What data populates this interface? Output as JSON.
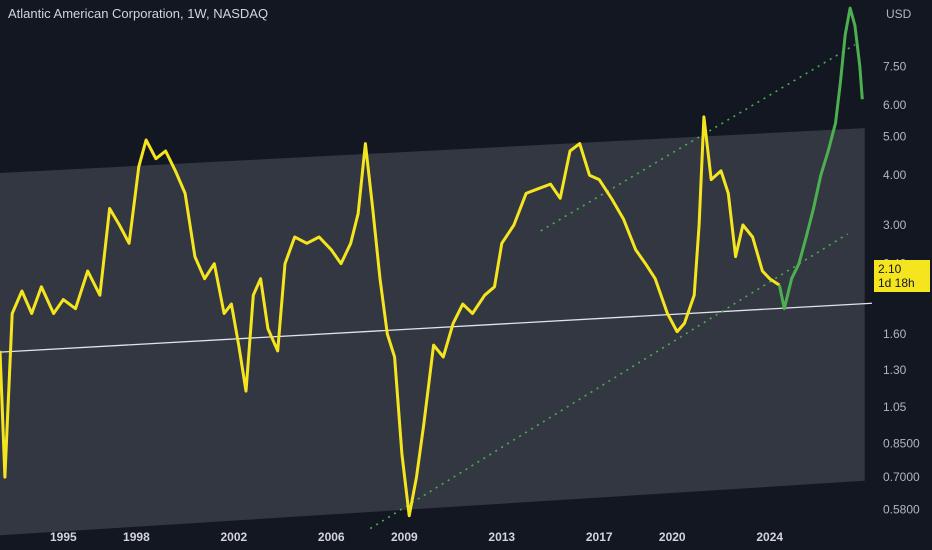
{
  "chart_data": {
    "type": "line",
    "title": "Atlantic American Corporation, 1W, NASDAQ",
    "currency": "USD",
    "yscale": "log",
    "ylim": [
      0.54,
      11.0
    ],
    "xlim": [
      1992.4,
      2028.2
    ],
    "y_ticks": [
      "7.50",
      "6.00",
      "5.00",
      "4.00",
      "3.00",
      "2.40",
      "1.60",
      "1.30",
      "1.05",
      "0.8500",
      "0.7000",
      "0.5800"
    ],
    "x_ticks": [
      "1995",
      "1998",
      "2002",
      "2006",
      "2009",
      "2013",
      "2017",
      "2020",
      "2024"
    ],
    "last_price": "2.10",
    "countdown": "1d 18h",
    "colors": {
      "background": "#131722",
      "price": "#f5e51f",
      "projection": "#4caf50",
      "channel": "#3a3d47",
      "midline": "#e0e3eb",
      "trendline": "#4caf50"
    },
    "series": [
      {
        "points": [
          [
            1992.4,
            1.45
          ],
          [
            1992.6,
            0.7
          ],
          [
            1992.9,
            1.8
          ],
          [
            1993.3,
            2.05
          ],
          [
            1993.7,
            1.8
          ],
          [
            1994.1,
            2.1
          ],
          [
            1994.6,
            1.8
          ],
          [
            1995.0,
            1.95
          ],
          [
            1995.5,
            1.85
          ],
          [
            1996.0,
            2.3
          ],
          [
            1996.5,
            2.0
          ],
          [
            1996.9,
            3.3
          ],
          [
            1997.3,
            3.0
          ],
          [
            1997.7,
            2.7
          ],
          [
            1998.1,
            4.2
          ],
          [
            1998.4,
            4.9
          ],
          [
            1998.8,
            4.4
          ],
          [
            1999.2,
            4.6
          ],
          [
            1999.6,
            4.1
          ],
          [
            2000.0,
            3.6
          ],
          [
            2000.4,
            2.5
          ],
          [
            2000.8,
            2.2
          ],
          [
            2001.2,
            2.4
          ],
          [
            2001.6,
            1.8
          ],
          [
            2001.9,
            1.9
          ],
          [
            2002.2,
            1.5
          ],
          [
            2002.5,
            1.15
          ],
          [
            2002.8,
            2.0
          ],
          [
            2003.1,
            2.2
          ],
          [
            2003.4,
            1.65
          ],
          [
            2003.8,
            1.45
          ],
          [
            2004.1,
            2.4
          ],
          [
            2004.5,
            2.8
          ],
          [
            2005.0,
            2.7
          ],
          [
            2005.5,
            2.8
          ],
          [
            2006.0,
            2.6
          ],
          [
            2006.4,
            2.4
          ],
          [
            2006.8,
            2.7
          ],
          [
            2007.1,
            3.2
          ],
          [
            2007.4,
            4.8
          ],
          [
            2007.7,
            3.3
          ],
          [
            2008.0,
            2.2
          ],
          [
            2008.3,
            1.6
          ],
          [
            2008.6,
            1.4
          ],
          [
            2008.9,
            0.8
          ],
          [
            2009.2,
            0.56
          ],
          [
            2009.5,
            0.7
          ],
          [
            2009.8,
            0.95
          ],
          [
            2010.2,
            1.5
          ],
          [
            2010.6,
            1.4
          ],
          [
            2011.0,
            1.7
          ],
          [
            2011.4,
            1.9
          ],
          [
            2011.8,
            1.8
          ],
          [
            2012.3,
            2.0
          ],
          [
            2012.7,
            2.1
          ],
          [
            2013.0,
            2.7
          ],
          [
            2013.5,
            3.0
          ],
          [
            2014.0,
            3.6
          ],
          [
            2014.5,
            3.7
          ],
          [
            2015.0,
            3.8
          ],
          [
            2015.4,
            3.5
          ],
          [
            2015.8,
            4.6
          ],
          [
            2016.2,
            4.8
          ],
          [
            2016.6,
            4.0
          ],
          [
            2017.0,
            3.9
          ],
          [
            2017.5,
            3.5
          ],
          [
            2018.0,
            3.1
          ],
          [
            2018.5,
            2.6
          ],
          [
            2018.9,
            2.4
          ],
          [
            2019.3,
            2.2
          ],
          [
            2019.8,
            1.8
          ],
          [
            2020.2,
            1.62
          ],
          [
            2020.5,
            1.7
          ],
          [
            2020.9,
            2.0
          ],
          [
            2021.1,
            3.0
          ],
          [
            2021.3,
            5.6
          ],
          [
            2021.6,
            3.9
          ],
          [
            2022.0,
            4.1
          ],
          [
            2022.3,
            3.6
          ],
          [
            2022.6,
            2.5
          ],
          [
            2022.9,
            3.0
          ],
          [
            2023.3,
            2.8
          ],
          [
            2023.7,
            2.3
          ],
          [
            2024.0,
            2.2
          ],
          [
            2024.4,
            2.12
          ]
        ]
      },
      {
        "points": [
          [
            2024.4,
            2.12
          ],
          [
            2024.6,
            1.85
          ],
          [
            2024.9,
            2.2
          ],
          [
            2025.2,
            2.4
          ],
          [
            2025.5,
            2.8
          ],
          [
            2025.8,
            3.3
          ],
          [
            2026.1,
            4.0
          ],
          [
            2026.4,
            4.6
          ],
          [
            2026.7,
            5.4
          ],
          [
            2026.9,
            6.8
          ],
          [
            2027.1,
            9.0
          ],
          [
            2027.3,
            10.5
          ],
          [
            2027.5,
            9.5
          ],
          [
            2027.7,
            7.5
          ],
          [
            2027.8,
            6.2
          ]
        ]
      }
    ],
    "annotations": {
      "channel_upper": [
        [
          1992.4,
          4.05
        ],
        [
          2027.9,
          5.25
        ]
      ],
      "channel_lower": [
        [
          1992.4,
          0.5
        ],
        [
          2027.9,
          0.685
        ]
      ],
      "midline": [
        [
          1992.4,
          1.44
        ],
        [
          2028.2,
          1.91
        ]
      ],
      "trend_lower": [
        [
          2007.6,
          0.52
        ],
        [
          2027.2,
          2.85
        ]
      ],
      "trend_upper": [
        [
          2014.6,
          2.9
        ],
        [
          2027.5,
          8.5
        ]
      ]
    }
  }
}
